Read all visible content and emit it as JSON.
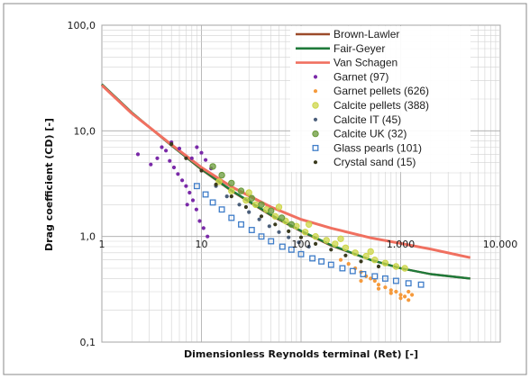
{
  "chart_data": {
    "type": "scatter",
    "title": "",
    "xlabel": "Dimensionless Reynolds terminal (Ret) [-]",
    "ylabel": "Drag coefficient (CD) [-]",
    "xscale": "log",
    "yscale": "log",
    "xlim": [
      1,
      10000
    ],
    "ylim": [
      0.1,
      100
    ],
    "grid": true,
    "legend_position": "top-right",
    "x_tick_labels": [
      "1",
      "10",
      "100",
      "1.000",
      "10.000"
    ],
    "y_tick_labels": [
      "0,1",
      "1,0",
      "10,0",
      "100,0"
    ],
    "lines": [
      {
        "name": "Brown-Lawler",
        "color": "#9c4a2a",
        "x": [
          1,
          2,
          5,
          10,
          20,
          50,
          100,
          200,
          500,
          1000,
          2000,
          5000
        ],
        "y": [
          27.5,
          14.8,
          7.3,
          4.3,
          2.7,
          1.58,
          1.12,
          0.82,
          0.6,
          0.5,
          0.44,
          0.4
        ]
      },
      {
        "name": "Fair-Geyer",
        "color": "#1f7a3a",
        "x": [
          1,
          2,
          5,
          10,
          20,
          50,
          100,
          200,
          500,
          1000,
          2000,
          5000
        ],
        "y": [
          27.6,
          14.9,
          7.25,
          4.35,
          2.73,
          1.6,
          1.13,
          0.83,
          0.6,
          0.5,
          0.44,
          0.4
        ]
      },
      {
        "name": "Van Schagen",
        "color": "#f07060",
        "x": [
          1,
          2,
          5,
          10,
          20,
          50,
          100,
          200,
          500,
          1000,
          2000,
          5000
        ],
        "y": [
          27,
          14.6,
          7.4,
          4.5,
          2.95,
          1.9,
          1.45,
          1.2,
          0.97,
          0.86,
          0.76,
          0.63
        ]
      }
    ],
    "series": [
      {
        "name": "Garnet (97)",
        "color": "#7a2aa8",
        "marker": "dot",
        "x": [
          2.3,
          3.1,
          3.6,
          4.0,
          4.4,
          4.8,
          5.3,
          5.8,
          6.4,
          7.0,
          7.6,
          8.2,
          8.9,
          9.6,
          10.5,
          11.5,
          5.0,
          6.0,
          8.0,
          9.0,
          10.0,
          11.0,
          12.5,
          7.2
        ],
        "y": [
          6.0,
          4.8,
          5.5,
          7.0,
          6.5,
          5.2,
          4.5,
          3.9,
          3.4,
          3.0,
          2.6,
          2.2,
          1.8,
          1.4,
          1.2,
          1.0,
          7.8,
          6.8,
          5.5,
          7.0,
          6.2,
          5.3,
          4.4,
          2.0
        ]
      },
      {
        "name": "Garnet pellets (626)",
        "color": "#f59a3c",
        "marker": "dot",
        "x": [
          250,
          300,
          350,
          400,
          450,
          500,
          550,
          600,
          700,
          800,
          900,
          1000,
          1100,
          1200,
          1300,
          400,
          600,
          800,
          1000,
          1200
        ],
        "y": [
          0.6,
          0.55,
          0.5,
          0.46,
          0.42,
          0.4,
          0.38,
          0.35,
          0.33,
          0.31,
          0.3,
          0.28,
          0.27,
          0.3,
          0.28,
          0.38,
          0.32,
          0.29,
          0.26,
          0.25
        ]
      },
      {
        "name": "Calcite pellets (388)",
        "color": "#cdd64a",
        "marker": "circle",
        "x": [
          15,
          20,
          28,
          35,
          45,
          55,
          70,
          90,
          110,
          140,
          180,
          220,
          280,
          350,
          450,
          550,
          700,
          900,
          1100,
          30,
          60,
          120,
          250,
          500
        ],
        "y": [
          3.3,
          2.7,
          2.2,
          2.0,
          1.8,
          1.55,
          1.4,
          1.25,
          1.1,
          1.0,
          0.92,
          0.85,
          0.78,
          0.7,
          0.65,
          0.6,
          0.56,
          0.52,
          0.5,
          2.6,
          1.9,
          1.3,
          0.95,
          0.72
        ]
      },
      {
        "name": "Calcite IT (45)",
        "color": "#4a5e7a",
        "marker": "dot",
        "x": [
          14,
          18,
          24,
          30,
          38,
          48,
          60,
          75,
          95,
          120
        ],
        "y": [
          3.0,
          2.4,
          2.0,
          1.7,
          1.45,
          1.25,
          1.1,
          0.98,
          0.88,
          0.8
        ]
      },
      {
        "name": "Calcite UK (32)",
        "color": "#6a9a3a",
        "marker": "circle",
        "x": [
          13,
          16,
          20,
          25,
          32,
          40,
          50,
          64,
          80
        ],
        "y": [
          4.6,
          3.8,
          3.2,
          2.7,
          2.3,
          2.0,
          1.75,
          1.5,
          1.3
        ]
      },
      {
        "name": "Glass pearls (101)",
        "color": "#3e7cc8",
        "marker": "square",
        "x": [
          9,
          11,
          13,
          16,
          20,
          25,
          32,
          40,
          50,
          65,
          80,
          100,
          130,
          160,
          200,
          260,
          330,
          420,
          550,
          700,
          900,
          1200,
          1600
        ],
        "y": [
          3.0,
          2.5,
          2.1,
          1.8,
          1.5,
          1.3,
          1.15,
          1.0,
          0.9,
          0.8,
          0.75,
          0.68,
          0.62,
          0.58,
          0.54,
          0.5,
          0.47,
          0.44,
          0.42,
          0.4,
          0.38,
          0.36,
          0.35
        ]
      },
      {
        "name": "Crystal sand (15)",
        "color": "#3a3a1e",
        "marker": "dot",
        "x": [
          5,
          7,
          10,
          14,
          20,
          28,
          40,
          55,
          75,
          100,
          140,
          200,
          280,
          400,
          600
        ],
        "y": [
          7.5,
          5.5,
          4.2,
          3.1,
          2.4,
          1.9,
          1.55,
          1.3,
          1.12,
          0.98,
          0.85,
          0.75,
          0.66,
          0.58,
          0.52
        ]
      }
    ]
  }
}
